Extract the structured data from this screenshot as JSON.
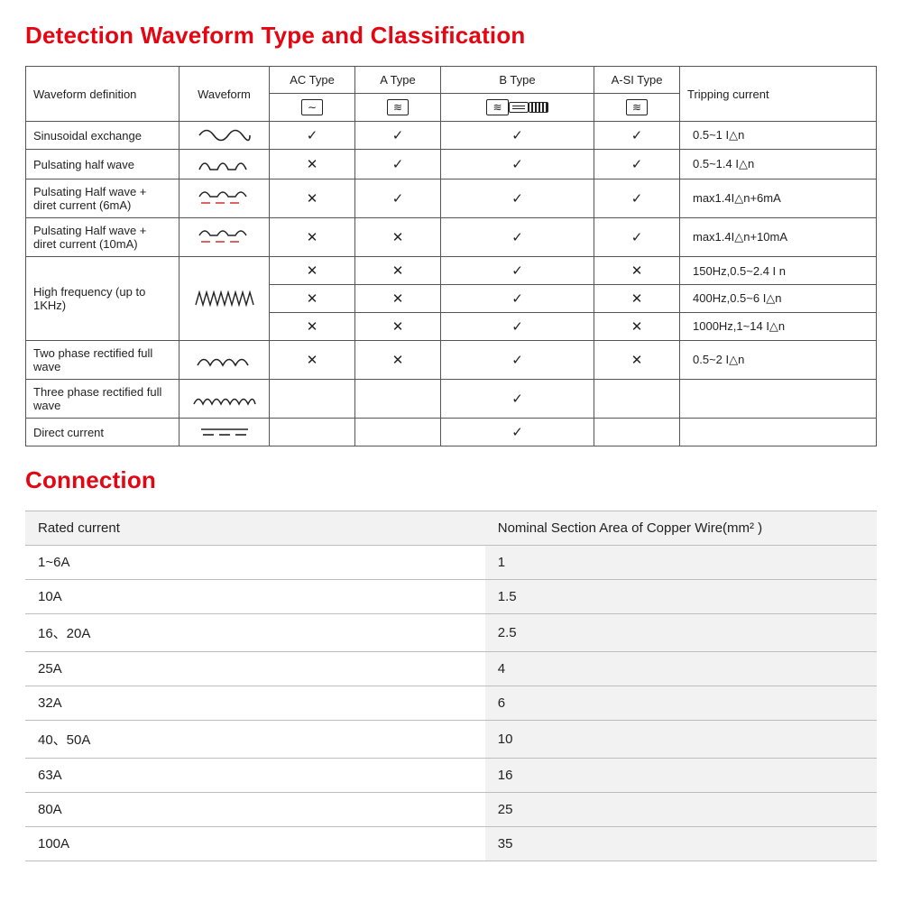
{
  "colors": {
    "title": "#e30613",
    "text": "#222222",
    "border": "#555555",
    "conn_border": "#bdbdbd",
    "conn_shade": "#f2f2f2",
    "background": "#ffffff"
  },
  "section1": {
    "title": "Detection Waveform Type and Classification",
    "header": {
      "waveform_def": "Waveform definition",
      "waveform": "Waveform",
      "ac_type": "AC Type",
      "a_type": "A Type",
      "b_type": "B Type",
      "asi_type": "A-SI Type",
      "tripping": "Tripping current"
    },
    "rows": [
      {
        "label": "Sinusoidal exchange",
        "wave": "sine",
        "ac": "check",
        "a": "check",
        "b": "check",
        "asi": "check",
        "trip": "0.5~1 I△n"
      },
      {
        "label": "Pulsating half wave",
        "wave": "half",
        "ac": "cross",
        "a": "check",
        "b": "check",
        "asi": "check",
        "trip": "0.5~1.4 I△n"
      },
      {
        "label": "Pulsating Half wave + diret current (6mA)",
        "wave": "half_dc",
        "ac": "cross",
        "a": "check",
        "b": "check",
        "asi": "check",
        "trip": "max1.4I△n+6mA"
      },
      {
        "label": "Pulsating Half wave + diret current (10mA)",
        "wave": "half_dc",
        "ac": "cross",
        "a": "cross",
        "b": "check",
        "asi": "check",
        "trip": "max1.4I△n+10mA"
      }
    ],
    "hf": {
      "label": "High frequency (up to 1KHz)",
      "wave": "hf",
      "lines": [
        {
          "ac": "cross",
          "a": "cross",
          "b": "check",
          "asi": "cross",
          "trip": "150Hz,0.5~2.4 I  n"
        },
        {
          "ac": "cross",
          "a": "cross",
          "b": "check",
          "asi": "cross",
          "trip": "400Hz,0.5~6 I△n"
        },
        {
          "ac": "cross",
          "a": "cross",
          "b": "check",
          "asi": "cross",
          "trip": "1000Hz,1~14 I△n"
        }
      ]
    },
    "rows2": [
      {
        "label": "Two phase rectified full wave",
        "wave": "two_rect",
        "ac": "cross",
        "a": "cross",
        "b": "check",
        "asi": "cross",
        "trip": "0.5~2 I△n"
      },
      {
        "label": "Three phase rectified full wave",
        "wave": "three_rect",
        "ac": "",
        "a": "",
        "b": "check",
        "asi": "",
        "trip": ""
      },
      {
        "label": "Direct current",
        "wave": "dc",
        "ac": "",
        "a": "",
        "b": "check",
        "asi": "",
        "trip": ""
      }
    ]
  },
  "section2": {
    "title": "Connection",
    "header": {
      "rated": "Rated current",
      "nominal": "Nominal Section Area of Copper Wire(mm² )"
    },
    "rows": [
      {
        "rated": "1~6A",
        "nominal": "1"
      },
      {
        "rated": "10A",
        "nominal": "1.5"
      },
      {
        "rated": "16、20A",
        "nominal": "2.5"
      },
      {
        "rated": "25A",
        "nominal": "4"
      },
      {
        "rated": "32A",
        "nominal": "6"
      },
      {
        "rated": "40、50A",
        "nominal": "10"
      },
      {
        "rated": "63A",
        "nominal": "16"
      },
      {
        "rated": "80A",
        "nominal": "25"
      },
      {
        "rated": "100A",
        "nominal": "35"
      }
    ]
  }
}
